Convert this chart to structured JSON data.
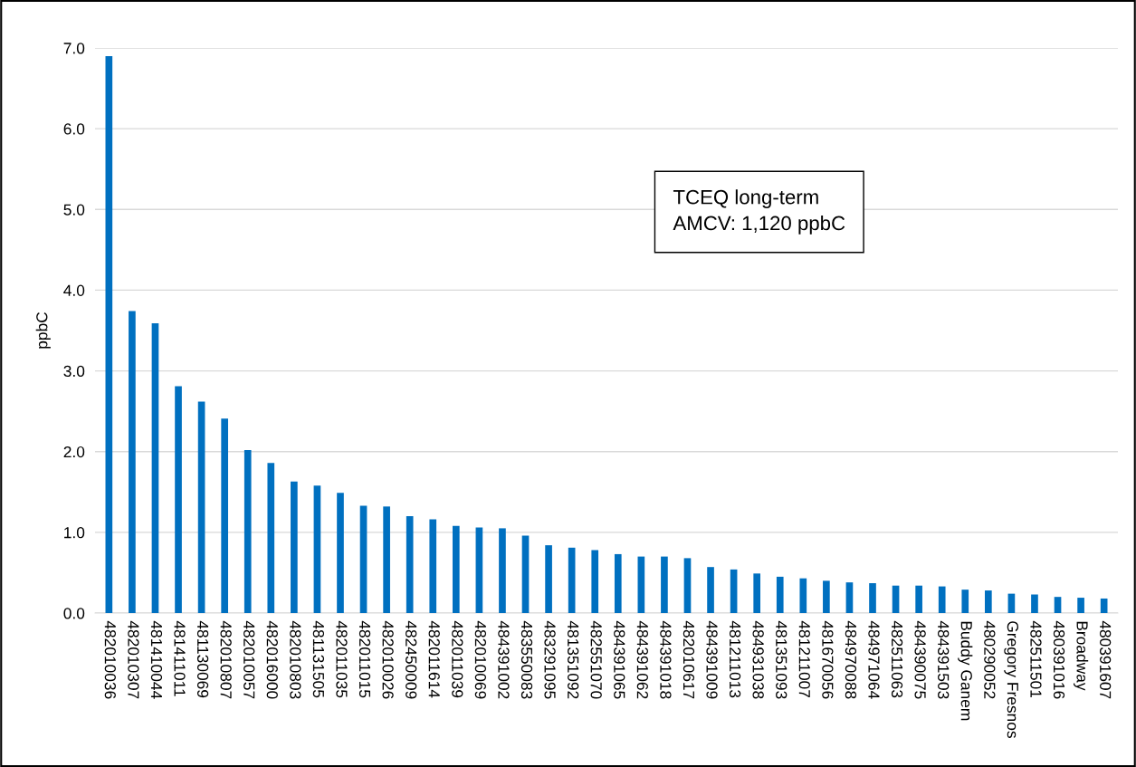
{
  "chart_data": {
    "type": "bar",
    "ylabel": "ppbC",
    "categories": [
      "482010036",
      "482010307",
      "481410044",
      "481411011",
      "481130069",
      "482010807",
      "482010057",
      "482016000",
      "482010803",
      "481131505",
      "482011035",
      "482011015",
      "482010026",
      "482450009",
      "482011614",
      "482011039",
      "482010069",
      "484391002",
      "483550083",
      "483291095",
      "481351092",
      "482551070",
      "484391065",
      "484391062",
      "484391018",
      "482010617",
      "484391009",
      "481211013",
      "484931038",
      "481351093",
      "481211007",
      "481670056",
      "484970088",
      "484971064",
      "482511063",
      "484390075",
      "484391503",
      "Buddy Ganem",
      "480290052",
      "Gregory Fresnos",
      "482511501",
      "480391016",
      "Broadway",
      "480391607"
    ],
    "values": [
      6.9,
      3.74,
      3.59,
      2.81,
      2.62,
      2.41,
      2.02,
      1.86,
      1.63,
      1.58,
      1.49,
      1.33,
      1.32,
      1.2,
      1.16,
      1.08,
      1.06,
      1.05,
      0.96,
      0.84,
      0.81,
      0.78,
      0.73,
      0.7,
      0.7,
      0.68,
      0.57,
      0.54,
      0.49,
      0.45,
      0.43,
      0.4,
      0.38,
      0.37,
      0.34,
      0.34,
      0.33,
      0.29,
      0.28,
      0.24,
      0.23,
      0.2,
      0.19,
      0.18
    ],
    "color": "#0070c0",
    "ylim": [
      0,
      7
    ],
    "yticks": [
      {
        "value": 0,
        "label": "0.0"
      },
      {
        "value": 1,
        "label": "1.0"
      },
      {
        "value": 2,
        "label": "2.0"
      },
      {
        "value": 3,
        "label": "3.0"
      },
      {
        "value": 4,
        "label": "4.0"
      },
      {
        "value": 5,
        "label": "5.0"
      },
      {
        "value": 6,
        "label": "6.0"
      },
      {
        "value": 7,
        "label": "7.0"
      }
    ],
    "grid": "y",
    "annotations": [
      "TCEQ long-term\nAMCV: 1,120 ppbC"
    ]
  }
}
